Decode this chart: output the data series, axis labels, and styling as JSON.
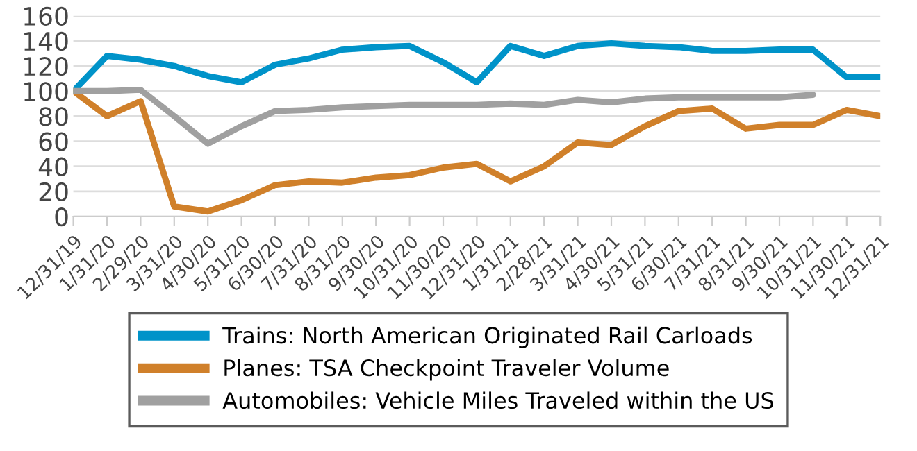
{
  "chart_data": {
    "type": "line",
    "categories": [
      "12/31/19",
      "1/31/20",
      "2/29/20",
      "3/31/20",
      "4/30/20",
      "5/31/20",
      "6/30/20",
      "7/31/20",
      "8/31/20",
      "9/30/20",
      "10/31/20",
      "11/30/20",
      "12/31/20",
      "1/31/21",
      "2/28/21",
      "3/31/21",
      "4/30/21",
      "5/31/21",
      "6/30/21",
      "7/31/21",
      "8/31/21",
      "9/30/21",
      "10/31/21",
      "11/30/21",
      "12/31/21"
    ],
    "series": [
      {
        "name": "Trains: North American Originated Rail Carloads",
        "color": "#0093c9",
        "values": [
          100,
          128,
          125,
          120,
          112,
          107,
          121,
          126,
          133,
          135,
          136,
          123,
          107,
          136,
          128,
          136,
          138,
          136,
          135,
          132,
          132,
          133,
          133,
          111,
          111
        ]
      },
      {
        "name": "Planes: TSA Checkpoint Traveler Volume",
        "color": "#d0802a",
        "values": [
          100,
          80,
          92,
          8,
          4,
          13,
          25,
          28,
          27,
          31,
          33,
          39,
          42,
          28,
          40,
          59,
          57,
          72,
          84,
          86,
          70,
          73,
          73,
          85,
          80
        ]
      },
      {
        "name": "Automobiles: Vehicle Miles Traveled within the US",
        "color": "#a0a0a0",
        "values": [
          100,
          100,
          101,
          80,
          58,
          72,
          84,
          85,
          87,
          88,
          89,
          89,
          89,
          90,
          89,
          93,
          91,
          94,
          95,
          95,
          95,
          95,
          97,
          null,
          null
        ]
      }
    ],
    "ylim": [
      0,
      160
    ],
    "yticks": [
      0,
      20,
      40,
      60,
      80,
      100,
      120,
      140,
      160
    ],
    "grid": "y",
    "legend": "bottom",
    "marker": "none",
    "line_style": "solid"
  }
}
